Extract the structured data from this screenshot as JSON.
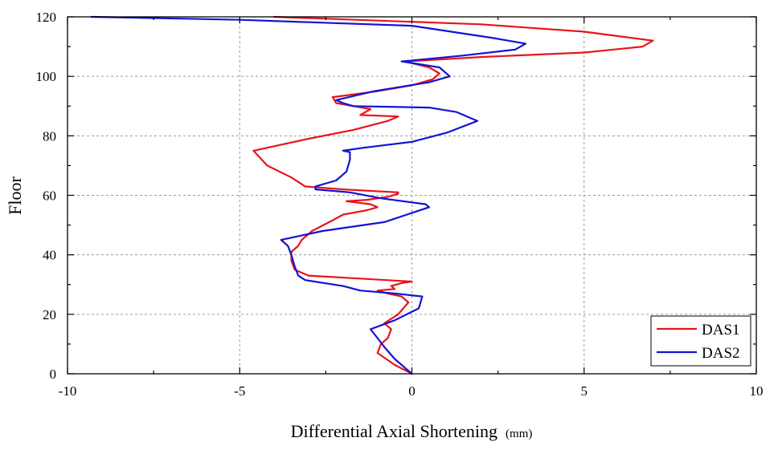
{
  "chart_data": {
    "type": "line",
    "xlabel": "Differential Axial Shortening",
    "xlabel_unit": "(mm)",
    "ylabel": "Floor",
    "xlim": [
      -10,
      10
    ],
    "ylim": [
      0,
      120
    ],
    "x_ticks": [
      -10,
      -5,
      0,
      5,
      10
    ],
    "y_ticks": [
      0,
      20,
      40,
      60,
      80,
      100,
      120
    ],
    "grid": true,
    "legend_position": "bottom-right",
    "series": [
      {
        "name": "DAS1",
        "color": "#e8141c",
        "points": [
          [
            0,
            0
          ],
          [
            -0.5,
            3
          ],
          [
            -1.0,
            7
          ],
          [
            -0.9,
            10
          ],
          [
            -0.7,
            12
          ],
          [
            -0.6,
            15
          ],
          [
            -0.8,
            17
          ],
          [
            -0.4,
            20
          ],
          [
            -0.1,
            24
          ],
          [
            -0.3,
            26
          ],
          [
            -0.7,
            27
          ],
          [
            -1.0,
            28
          ],
          [
            -0.5,
            28.5
          ],
          [
            -0.6,
            29.5
          ],
          [
            -0.3,
            30.5
          ],
          [
            0,
            31
          ],
          [
            -1.5,
            32
          ],
          [
            -3.0,
            33
          ],
          [
            -3.4,
            35
          ],
          [
            -3.5,
            38
          ],
          [
            -3.5,
            41
          ],
          [
            -3.3,
            43
          ],
          [
            -3.2,
            45
          ],
          [
            -2.9,
            48
          ],
          [
            -2.4,
            51
          ],
          [
            -2.0,
            53.5
          ],
          [
            -1.3,
            55
          ],
          [
            -1.0,
            56
          ],
          [
            -1.2,
            57
          ],
          [
            -1.9,
            58
          ],
          [
            -1.3,
            58.5
          ],
          [
            -0.7,
            59.5
          ],
          [
            -0.4,
            60.5
          ],
          [
            -0.4,
            61
          ],
          [
            -2.0,
            62
          ],
          [
            -3.1,
            63
          ],
          [
            -3.5,
            66
          ],
          [
            -4.2,
            70
          ],
          [
            -4.6,
            75
          ],
          [
            -3.0,
            79
          ],
          [
            -1.7,
            82
          ],
          [
            -0.7,
            85
          ],
          [
            -0.4,
            86.5
          ],
          [
            -1.5,
            87
          ],
          [
            -1.2,
            89
          ],
          [
            -2.2,
            91
          ],
          [
            -2.3,
            93
          ],
          [
            -1.0,
            95
          ],
          [
            0,
            97
          ],
          [
            0.6,
            99
          ],
          [
            0.8,
            101
          ],
          [
            0.5,
            103
          ],
          [
            -0.2,
            105
          ],
          [
            2.0,
            106.5
          ],
          [
            5.0,
            108
          ],
          [
            6.7,
            110
          ],
          [
            7.0,
            112
          ],
          [
            5.0,
            115
          ],
          [
            2.0,
            117.5
          ],
          [
            -4.0,
            120
          ]
        ]
      },
      {
        "name": "DAS2",
        "color": "#1414d2",
        "points": [
          [
            0,
            0
          ],
          [
            -0.5,
            5
          ],
          [
            -0.8,
            9
          ],
          [
            -1.0,
            12
          ],
          [
            -1.2,
            15
          ],
          [
            -0.5,
            18
          ],
          [
            0.2,
            22
          ],
          [
            0.3,
            26
          ],
          [
            -0.5,
            27
          ],
          [
            -1.5,
            28
          ],
          [
            -2.0,
            29.5
          ],
          [
            -3.1,
            31.5
          ],
          [
            -3.3,
            33
          ],
          [
            -3.4,
            36
          ],
          [
            -3.5,
            40
          ],
          [
            -3.6,
            43
          ],
          [
            -3.8,
            45
          ],
          [
            -2.6,
            48
          ],
          [
            -0.8,
            51
          ],
          [
            0.5,
            56
          ],
          [
            0.4,
            57
          ],
          [
            -0.9,
            59
          ],
          [
            -1.8,
            61
          ],
          [
            -2.8,
            62
          ],
          [
            -2.8,
            63
          ],
          [
            -2.2,
            65
          ],
          [
            -1.9,
            68
          ],
          [
            -1.8,
            72
          ],
          [
            -1.8,
            74.5
          ],
          [
            -2.0,
            75
          ],
          [
            -1.4,
            76
          ],
          [
            0,
            78
          ],
          [
            1.0,
            81
          ],
          [
            1.9,
            85
          ],
          [
            1.3,
            88
          ],
          [
            0.5,
            89.5
          ],
          [
            -1.7,
            90
          ],
          [
            -2.0,
            91
          ],
          [
            -2.2,
            92
          ],
          [
            -1.1,
            95
          ],
          [
            0.5,
            98
          ],
          [
            1.1,
            100
          ],
          [
            0.8,
            103
          ],
          [
            -0.3,
            105
          ],
          [
            1.5,
            107
          ],
          [
            3.0,
            109
          ],
          [
            3.3,
            111
          ],
          [
            2.3,
            113
          ],
          [
            0,
            117
          ],
          [
            -5.0,
            119
          ],
          [
            -9.3,
            120
          ]
        ]
      }
    ]
  }
}
